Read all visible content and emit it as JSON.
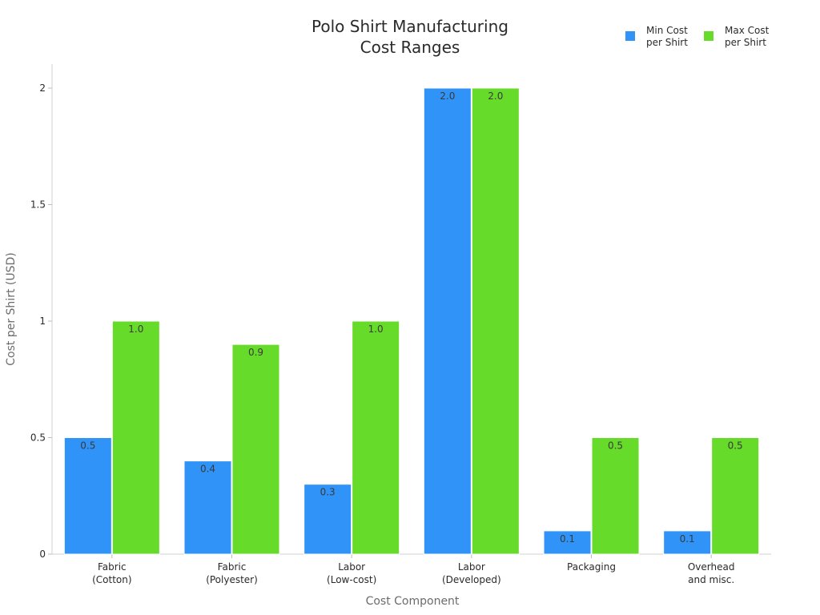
{
  "chart_data": {
    "type": "bar",
    "title": [
      "Polo Shirt Manufacturing",
      "Cost Ranges"
    ],
    "xlabel": "Cost Component",
    "ylabel": "Cost per Shirt (USD)",
    "ylim": [
      0,
      2.1
    ],
    "yticks": [
      {
        "value": 0,
        "label": "0"
      },
      {
        "value": 0.5,
        "label": "0.5"
      },
      {
        "value": 1,
        "label": "1"
      },
      {
        "value": 1.5,
        "label": "1.5"
      },
      {
        "value": 2,
        "label": "2"
      }
    ],
    "categories": [
      [
        "Fabric",
        "(Cotton)"
      ],
      [
        "Fabric",
        "(Polyester)"
      ],
      [
        "Labor",
        "(Low-cost)"
      ],
      [
        "Labor",
        "(Developed)"
      ],
      [
        "Packaging"
      ],
      [
        "Overhead",
        "and misc."
      ]
    ],
    "series": [
      {
        "name": [
          "Min Cost",
          "per Shirt"
        ],
        "color": "#2f93f7",
        "values": [
          0.5,
          0.4,
          0.3,
          2.0,
          0.1,
          0.1
        ]
      },
      {
        "name": [
          "Max Cost",
          "per Shirt"
        ],
        "color": "#66db29",
        "values": [
          1.0,
          0.9,
          1.0,
          2.0,
          0.5,
          0.5
        ]
      }
    ],
    "grid": false,
    "legend_position": "top-right"
  }
}
